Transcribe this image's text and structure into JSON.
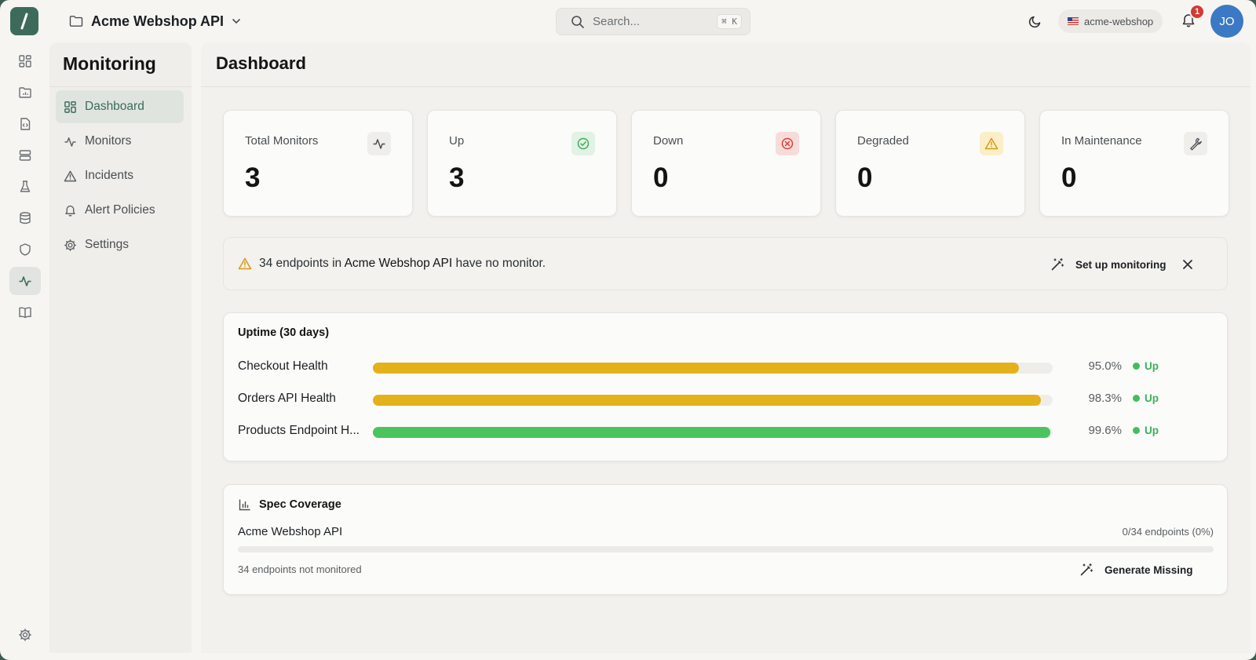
{
  "header": {
    "project_name": "Acme Webshop API",
    "search_placeholder": "Search...",
    "search_shortcut": "⌘ K",
    "workspace": "acme-webshop",
    "notification_count": "1",
    "avatar_initials": "JO"
  },
  "sidenav": {
    "title": "Monitoring",
    "items": [
      {
        "label": "Dashboard",
        "icon": "dashboard-icon",
        "active": true
      },
      {
        "label": "Monitors",
        "icon": "activity-icon"
      },
      {
        "label": "Incidents",
        "icon": "warning-icon"
      },
      {
        "label": "Alert Policies",
        "icon": "bell-icon"
      },
      {
        "label": "Settings",
        "icon": "gear-icon"
      }
    ]
  },
  "main": {
    "title": "Dashboard",
    "stats": [
      {
        "label": "Total Monitors",
        "value": "3",
        "icon": "activity-icon"
      },
      {
        "label": "Up",
        "value": "3",
        "icon": "check-circle-icon",
        "color": "#3fae5b"
      },
      {
        "label": "Down",
        "value": "0",
        "icon": "x-circle-icon",
        "color": "#d9423a"
      },
      {
        "label": "Degraded",
        "value": "0",
        "icon": "warning-icon",
        "color": "#d99a18"
      },
      {
        "label": "In Maintenance",
        "value": "0",
        "icon": "wrench-icon"
      }
    ],
    "banner": {
      "count_text": "34 endpoints in ",
      "api_name": "Acme Webshop API",
      "suffix_text": " have no monitor.",
      "action_label": "Set up monitoring"
    },
    "uptime": {
      "title": "Uptime (30 days)",
      "rows": [
        {
          "name": "Checkout Health",
          "percent": "95.0%",
          "value": 95.0,
          "status": "Up",
          "bar_color": "#e3b21b"
        },
        {
          "name": "Orders API Health",
          "percent": "98.3%",
          "value": 98.3,
          "status": "Up",
          "bar_color": "#e3b21b"
        },
        {
          "name": "Products Endpoint H...",
          "percent": "99.6%",
          "value": 99.6,
          "status": "Up",
          "bar_color": "#4cc35f"
        }
      ]
    },
    "coverage": {
      "title": "Spec Coverage",
      "api_name": "Acme Webshop API",
      "count": "0/34 endpoints (0%)",
      "value": 0,
      "note": "34 endpoints not monitored",
      "action_label": "Generate Missing"
    }
  },
  "colors": {
    "accent": "#3d6b5b",
    "up": "#3fae5b",
    "down": "#d9423a",
    "warning": "#d99a18",
    "avatar": "#3b79c5"
  }
}
